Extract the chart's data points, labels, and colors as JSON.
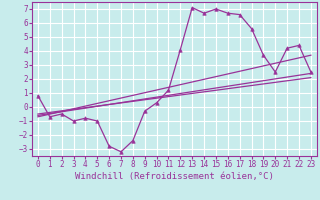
{
  "bg_color": "#c8ecec",
  "grid_color": "#ffffff",
  "line_color": "#993399",
  "x_data": [
    0,
    1,
    2,
    3,
    4,
    5,
    6,
    7,
    8,
    9,
    10,
    11,
    12,
    13,
    14,
    15,
    16,
    17,
    18,
    19,
    20,
    21,
    22,
    23
  ],
  "y_main": [
    0.8,
    -0.7,
    -0.5,
    -1.0,
    -0.8,
    -1.0,
    -2.8,
    -3.2,
    -2.4,
    -0.3,
    0.3,
    1.2,
    4.1,
    7.1,
    6.7,
    7.0,
    6.7,
    6.6,
    5.6,
    3.7,
    2.5,
    4.2,
    4.4,
    2.5
  ],
  "trend1_x": [
    0,
    23
  ],
  "trend1_y": [
    -0.7,
    3.7
  ],
  "trend2_x": [
    0,
    23
  ],
  "trend2_y": [
    -0.6,
    2.4
  ],
  "trend3_x": [
    0,
    23
  ],
  "trend3_y": [
    -0.5,
    2.1
  ],
  "xlim": [
    -0.5,
    23.5
  ],
  "ylim": [
    -3.5,
    7.5
  ],
  "yticks": [
    -3,
    -2,
    -1,
    0,
    1,
    2,
    3,
    4,
    5,
    6,
    7
  ],
  "xticks": [
    0,
    1,
    2,
    3,
    4,
    5,
    6,
    7,
    8,
    9,
    10,
    11,
    12,
    13,
    14,
    15,
    16,
    17,
    18,
    19,
    20,
    21,
    22,
    23
  ],
  "xlabel": "Windchill (Refroidissement éolien,°C)",
  "xlabel_fontsize": 6.5,
  "tick_fontsize": 5.5,
  "fig_width": 3.2,
  "fig_height": 2.0,
  "dpi": 100
}
